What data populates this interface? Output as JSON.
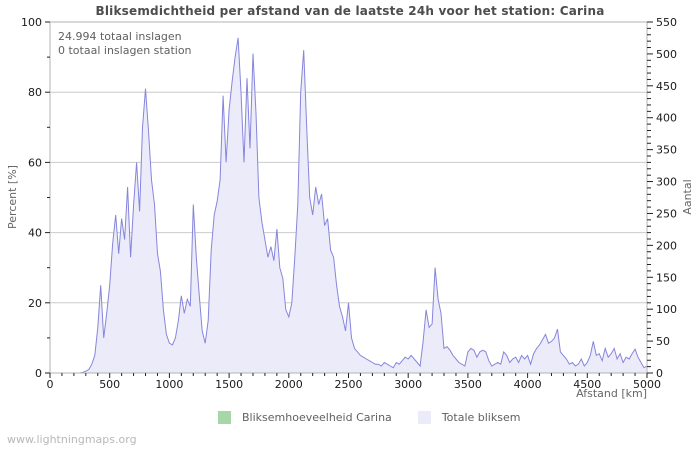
{
  "title": "Bliksemdichtheid per afstand van de laatste 24h voor het station: Carina",
  "annotations": [
    "24.994 totaal inslagen",
    "0 totaal inslagen station"
  ],
  "footer": "www.lightningmaps.org",
  "legend": [
    {
      "label": "Bliksemhoeveelheid Carina",
      "color": "#a7d7a7"
    },
    {
      "label": "Totale bliksem",
      "color": "#ebebf9"
    }
  ],
  "colors": {
    "line": "#8686dc",
    "fill": "#ebebf9",
    "grid": "#cccccc",
    "border": "#b3b3b3",
    "tick": "#222222",
    "tick_label": "#1a1a1a",
    "axis_title": "#666666",
    "title": "#4d4d4d"
  },
  "chart_data": {
    "type": "area",
    "title": "Bliksemdichtheid per afstand van de laatste 24h voor het station: Carina",
    "grid": "horizontal-major",
    "legend_position": "bottom-center",
    "x_axis": {
      "label": "Afstand [km]",
      "min": 0,
      "max": 5000,
      "major_step": 500,
      "minor_step": 100
    },
    "y_left": {
      "label": "Percent [%]",
      "min": 0,
      "max": 100,
      "major_step": 20,
      "minor_step": 10
    },
    "y_right": {
      "label": "Aantal",
      "min": 0,
      "max": 550,
      "major_step": 50,
      "minor_step": 10
    },
    "totals": {
      "total_strikes": "24.994",
      "station_strikes": "0"
    },
    "series": [
      {
        "name": "Bliksemhoeveelheid Carina",
        "color": "#a7d7a7",
        "constant": 0
      },
      {
        "name": "Totale bliksem",
        "fill": "#ebebf9",
        "line": "#8686dc",
        "axis": "percent_left",
        "x_start": 0,
        "x_step": 25,
        "values": [
          0,
          0,
          0,
          0,
          0,
          0,
          0,
          0,
          0,
          0,
          0,
          0.2,
          0.5,
          1,
          2.5,
          5,
          13,
          25,
          10,
          17,
          25,
          37,
          45,
          34,
          44,
          38,
          53,
          33,
          48,
          60,
          46,
          70,
          81,
          69,
          55,
          48,
          34,
          29,
          18,
          11,
          8.5,
          8,
          10,
          15,
          22,
          17,
          21,
          19,
          48,
          33,
          22,
          12,
          8.5,
          15,
          35,
          45,
          49,
          55,
          79,
          60,
          75,
          83,
          90,
          95.5,
          80,
          60,
          84,
          64,
          91,
          74,
          50,
          43,
          38,
          33,
          36,
          32,
          41,
          30,
          27,
          18,
          16,
          20,
          33,
          48,
          80,
          92,
          70,
          50,
          45,
          53,
          48,
          51,
          42,
          44,
          35,
          33,
          25,
          19,
          16,
          12,
          20,
          10,
          7,
          6,
          5,
          4.5,
          4,
          3.5,
          3,
          2.5,
          2.5,
          2,
          3,
          2.5,
          2,
          1.5,
          3,
          2.5,
          3.5,
          4.5,
          4,
          5,
          4,
          3,
          2,
          9,
          18,
          13,
          14,
          30,
          21,
          17,
          7,
          7.5,
          6.5,
          5,
          4,
          3,
          2.5,
          2,
          6,
          7,
          6.5,
          4.5,
          6,
          6.5,
          6,
          3.5,
          2,
          2.5,
          3,
          2.5,
          6,
          5,
          3,
          4,
          4.5,
          3,
          5,
          4,
          5,
          2.5,
          5.5,
          7,
          8,
          9.5,
          11,
          8.5,
          9,
          10,
          12.5,
          6,
          5,
          4,
          2.5,
          3,
          2,
          2.5,
          4,
          2,
          3,
          5,
          9,
          5,
          5.5,
          3.5,
          7,
          4.5,
          5.5,
          7,
          4,
          5.5,
          3,
          4.5,
          4,
          5.5,
          6.8,
          4.5,
          3,
          1.5,
          2
        ]
      }
    ]
  }
}
